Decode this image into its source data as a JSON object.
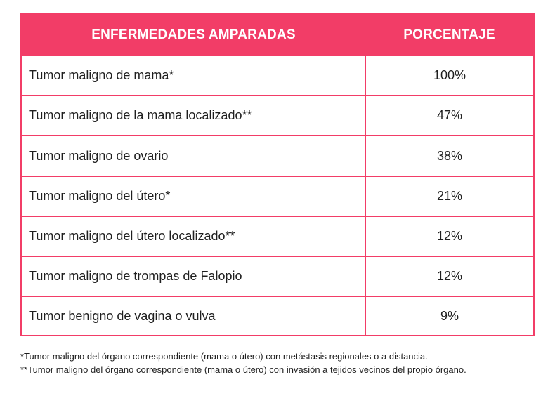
{
  "table": {
    "headers": {
      "disease": "ENFERMEDADES AMPARADAS",
      "percent": "PORCENTAJE"
    },
    "rows": [
      {
        "disease": "Tumor maligno de mama*",
        "percent": "100%"
      },
      {
        "disease": "Tumor maligno de la mama localizado**",
        "percent": "47%"
      },
      {
        "disease": "Tumor maligno de ovario",
        "percent": "38%"
      },
      {
        "disease": "Tumor maligno del útero*",
        "percent": "21%"
      },
      {
        "disease": "Tumor maligno del útero localizado**",
        "percent": "12%"
      },
      {
        "disease": "Tumor maligno de trompas de Falopio",
        "percent": "12%"
      },
      {
        "disease": "Tumor benigno de vagina o vulva",
        "percent": "9%"
      }
    ]
  },
  "footnotes": [
    "*Tumor maligno del órgano correspondiente (mama o útero) con metástasis regionales o a distancia.",
    "**Tumor maligno del órgano correspondiente (mama o útero) con invasión a tejidos vecinos del propio órgano."
  ],
  "colors": {
    "accent": "#f23d67",
    "header_text": "#ffffff",
    "body_text": "#1f1f1f"
  }
}
